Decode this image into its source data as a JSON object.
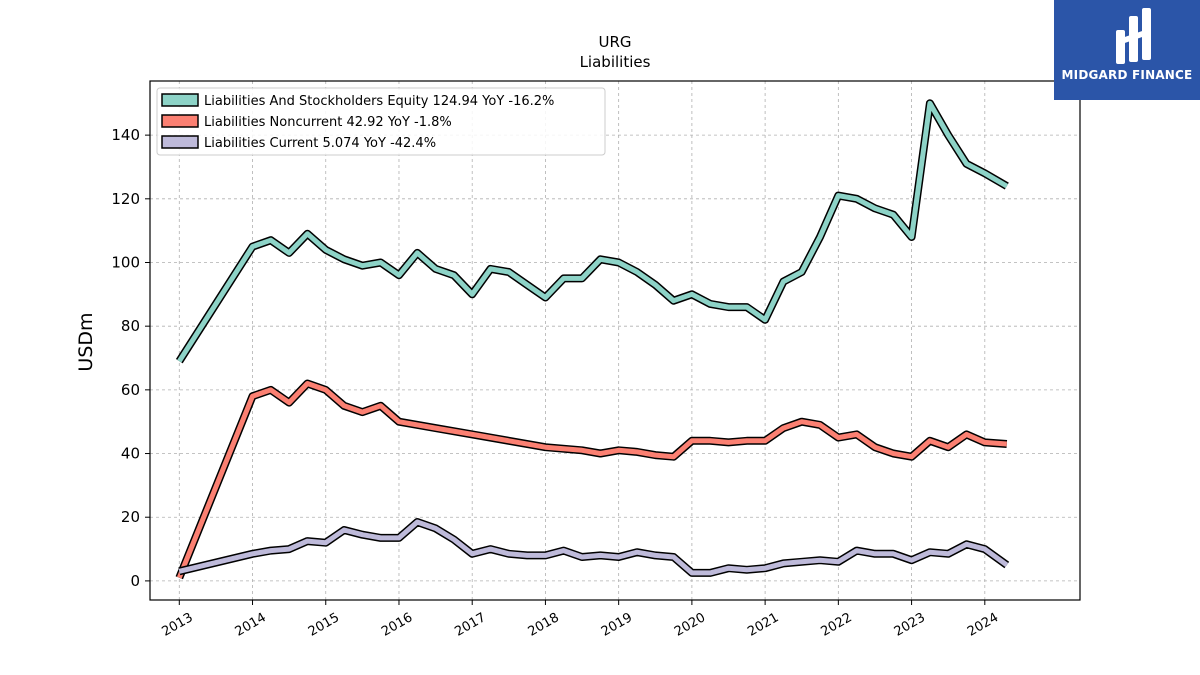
{
  "logo": {
    "text": "MIDGARD FINANCE",
    "bg": "#2b55a8"
  },
  "chart_data": {
    "type": "line",
    "title": "URG",
    "subtitle": "Liabilities",
    "ylabel": "USDm",
    "xlabel": "",
    "xlim": [
      2012.6,
      2025.3
    ],
    "ylim": [
      -6,
      157
    ],
    "x_ticks": [
      2013,
      2014,
      2015,
      2016,
      2017,
      2018,
      2019,
      2020,
      2021,
      2022,
      2023,
      2024
    ],
    "y_ticks": [
      0,
      20,
      40,
      60,
      80,
      100,
      120,
      140
    ],
    "grid": true,
    "legend_position": "top-left",
    "series": [
      {
        "name": "Liabilities And Stockholders Equity  124.94 YoY -16.2%",
        "color": "#8dd3c7",
        "points": [
          [
            2013.0,
            69
          ],
          [
            2014.0,
            105
          ],
          [
            2014.25,
            107
          ],
          [
            2014.5,
            103
          ],
          [
            2014.75,
            109
          ],
          [
            2015.0,
            104
          ],
          [
            2015.25,
            101
          ],
          [
            2015.5,
            99
          ],
          [
            2015.75,
            100
          ],
          [
            2016.0,
            96
          ],
          [
            2016.25,
            103
          ],
          [
            2016.5,
            98
          ],
          [
            2016.75,
            96
          ],
          [
            2017.0,
            90
          ],
          [
            2017.25,
            98
          ],
          [
            2017.5,
            97
          ],
          [
            2017.75,
            93
          ],
          [
            2018.0,
            89
          ],
          [
            2018.25,
            95
          ],
          [
            2018.5,
            95
          ],
          [
            2018.75,
            101
          ],
          [
            2019.0,
            100
          ],
          [
            2019.25,
            97
          ],
          [
            2019.5,
            93
          ],
          [
            2019.75,
            88
          ],
          [
            2020.0,
            90
          ],
          [
            2020.25,
            87
          ],
          [
            2020.5,
            86
          ],
          [
            2020.75,
            86
          ],
          [
            2021.0,
            82
          ],
          [
            2021.25,
            94
          ],
          [
            2021.5,
            97
          ],
          [
            2021.75,
            108
          ],
          [
            2022.0,
            121
          ],
          [
            2022.25,
            120
          ],
          [
            2022.5,
            117
          ],
          [
            2022.75,
            115
          ],
          [
            2023.0,
            108
          ],
          [
            2023.25,
            150
          ],
          [
            2023.5,
            140
          ],
          [
            2023.75,
            131
          ],
          [
            2024.0,
            128
          ],
          [
            2024.3,
            124
          ]
        ]
      },
      {
        "name": "Liabilities Noncurrent  42.92 YoY -1.8%",
        "color": "#fb8072",
        "points": [
          [
            2013.0,
            1
          ],
          [
            2014.0,
            58
          ],
          [
            2014.25,
            60
          ],
          [
            2014.5,
            56
          ],
          [
            2014.75,
            62
          ],
          [
            2015.0,
            60
          ],
          [
            2015.25,
            55
          ],
          [
            2015.5,
            53
          ],
          [
            2015.75,
            55
          ],
          [
            2016.0,
            50
          ],
          [
            2016.5,
            48
          ],
          [
            2017.0,
            46
          ],
          [
            2017.5,
            44
          ],
          [
            2018.0,
            42
          ],
          [
            2018.5,
            41
          ],
          [
            2018.75,
            40
          ],
          [
            2019.0,
            41
          ],
          [
            2019.25,
            40.5
          ],
          [
            2019.5,
            39.5
          ],
          [
            2019.75,
            39
          ],
          [
            2020.0,
            44
          ],
          [
            2020.25,
            44
          ],
          [
            2020.5,
            43.5
          ],
          [
            2020.75,
            44
          ],
          [
            2021.0,
            44
          ],
          [
            2021.25,
            48
          ],
          [
            2021.5,
            50
          ],
          [
            2021.75,
            49
          ],
          [
            2022.0,
            45
          ],
          [
            2022.25,
            46
          ],
          [
            2022.5,
            42
          ],
          [
            2022.75,
            40
          ],
          [
            2023.0,
            39
          ],
          [
            2023.25,
            44
          ],
          [
            2023.5,
            42
          ],
          [
            2023.75,
            46
          ],
          [
            2024.0,
            43.5
          ],
          [
            2024.3,
            43
          ]
        ]
      },
      {
        "name": "Liabilities Current  5.074 YoY -42.4%",
        "color": "#bebada",
        "points": [
          [
            2013.0,
            3
          ],
          [
            2014.0,
            8.5
          ],
          [
            2014.25,
            9.5
          ],
          [
            2014.5,
            10
          ],
          [
            2014.75,
            12.5
          ],
          [
            2015.0,
            12
          ],
          [
            2015.25,
            16
          ],
          [
            2015.5,
            14.5
          ],
          [
            2015.75,
            13.5
          ],
          [
            2016.0,
            13.5
          ],
          [
            2016.25,
            18.5
          ],
          [
            2016.5,
            16.5
          ],
          [
            2016.75,
            13
          ],
          [
            2017.0,
            8.5
          ],
          [
            2017.25,
            10
          ],
          [
            2017.5,
            8.5
          ],
          [
            2017.75,
            8
          ],
          [
            2018.0,
            8
          ],
          [
            2018.25,
            9.5
          ],
          [
            2018.5,
            7.5
          ],
          [
            2018.75,
            8
          ],
          [
            2019.0,
            7.5
          ],
          [
            2019.25,
            9
          ],
          [
            2019.5,
            8
          ],
          [
            2019.75,
            7.5
          ],
          [
            2020.0,
            2.5
          ],
          [
            2020.25,
            2.5
          ],
          [
            2020.5,
            4
          ],
          [
            2020.75,
            3.5
          ],
          [
            2021.0,
            4
          ],
          [
            2021.25,
            5.5
          ],
          [
            2021.5,
            6
          ],
          [
            2021.75,
            6.5
          ],
          [
            2022.0,
            6
          ],
          [
            2022.25,
            9.5
          ],
          [
            2022.5,
            8.5
          ],
          [
            2022.75,
            8.5
          ],
          [
            2023.0,
            6.5
          ],
          [
            2023.25,
            9
          ],
          [
            2023.5,
            8.5
          ],
          [
            2023.75,
            11.5
          ],
          [
            2024.0,
            10
          ],
          [
            2024.3,
            5
          ]
        ]
      }
    ]
  }
}
